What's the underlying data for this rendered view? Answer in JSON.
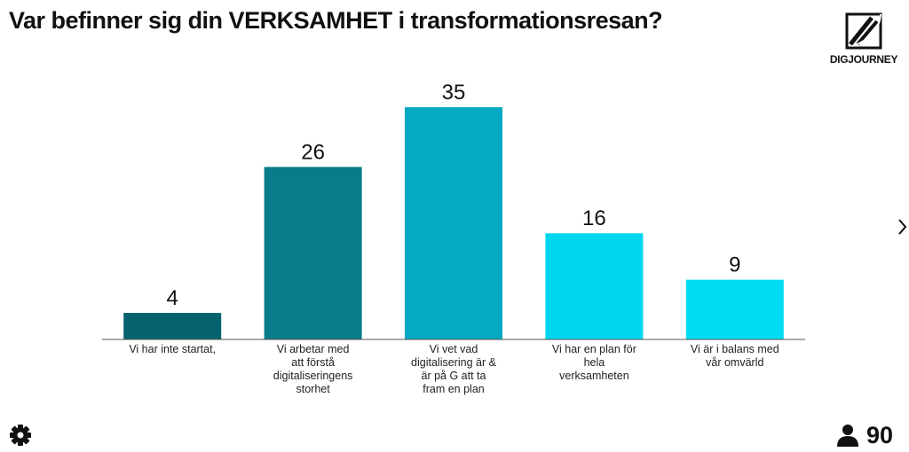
{
  "header": {
    "title": "Var befinner sig din VERKSAMHET i transformationsresan?"
  },
  "logo": {
    "text": "DIGJOURNEY",
    "icon": "digjourney-logo"
  },
  "chart_data": {
    "type": "bar",
    "title": "Var befinner sig din VERKSAMHET i transformationsresan?",
    "categories": [
      "Vi har inte startat,",
      "Vi arbetar med att förstå digitaliseringens storhet",
      "Vi vet vad digitalisering är & är på G att ta fram en plan",
      "Vi har en plan för hela verksamheten",
      "Vi är i balans med vår omvärld"
    ],
    "category_lines": [
      [
        "Vi har inte startat,"
      ],
      [
        "Vi arbetar med",
        "att förstå",
        "digitaliseringens",
        "storhet"
      ],
      [
        "Vi vet vad",
        "digitalisering är &",
        "är på G att ta",
        "fram en plan"
      ],
      [
        "Vi har en plan för",
        "hela",
        "verksamheten"
      ],
      [
        "Vi är i balans med",
        "vår omvärld"
      ]
    ],
    "values": [
      4,
      26,
      35,
      16,
      9
    ],
    "colors": [
      "#05636f",
      "#087c8b",
      "#04a9c3",
      "#00d7ef",
      "#00dcf2"
    ],
    "ylim": [
      0,
      35
    ],
    "xlabel": "",
    "ylabel": "",
    "grid": false,
    "legend": "none"
  },
  "footer": {
    "settings_icon": "gear-icon",
    "participants_icon": "person-icon",
    "participants_count": "90"
  },
  "nav": {
    "next_icon": "chevron-right-icon"
  }
}
